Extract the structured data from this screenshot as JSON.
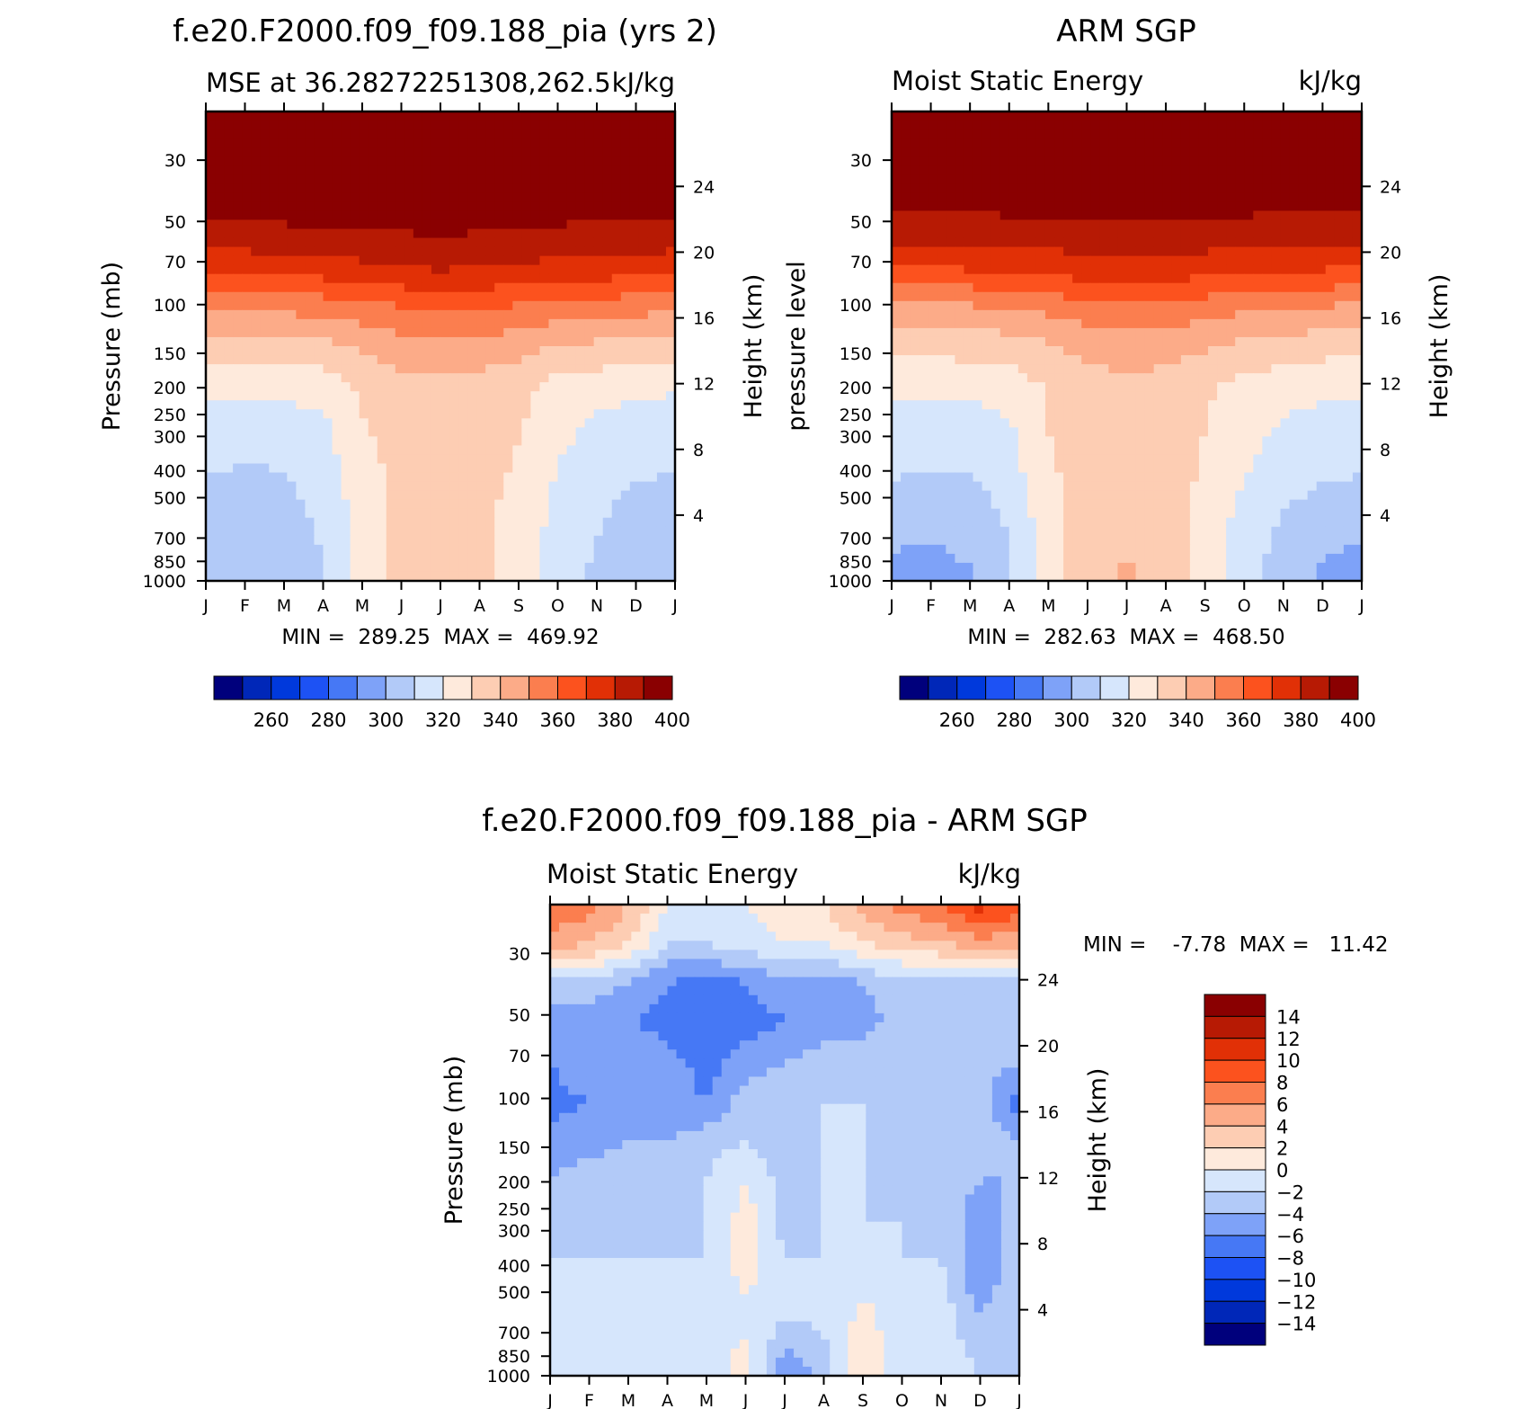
{
  "chart_data": [
    {
      "type": "heatmap",
      "title": "f.e20.F2000.f09_f09.188_pia (yrs 2)",
      "left_label": "MSE at 36.28272251308,262.5",
      "right_label": "kJ/kg",
      "ylabel": "Pressure (mb)",
      "y2label": "Height (km)",
      "x_ticks": [
        "J",
        "F",
        "M",
        "A",
        "M",
        "J",
        "J",
        "A",
        "S",
        "O",
        "N",
        "D",
        "J"
      ],
      "y_ticks": [
        "30",
        "50",
        "70",
        "100",
        "150",
        "200",
        "250",
        "300",
        "400",
        "500",
        "700",
        "850",
        "1000"
      ],
      "y_tick_values": [
        30,
        50,
        70,
        100,
        150,
        200,
        250,
        300,
        400,
        500,
        700,
        850,
        1000
      ],
      "y2_ticks": [
        "24",
        "20",
        "16",
        "12",
        "8",
        "4"
      ],
      "y2_tick_values": [
        24,
        20,
        16,
        12,
        8,
        4
      ],
      "ylim": [
        20,
        1000
      ],
      "min_max_text": "MIN =  289.25  MAX =  469.92",
      "z_min": 289.25,
      "z_max": 469.92,
      "colorbar_labels": [
        "260",
        "280",
        "300",
        "320",
        "340",
        "360",
        "380",
        "400"
      ],
      "grid": [
        [
          410,
          410,
          410,
          410,
          410,
          410,
          410,
          410,
          410,
          410,
          410,
          410,
          410
        ],
        [
          402,
          402,
          402,
          403,
          404,
          406,
          408,
          407,
          406,
          404,
          403,
          402,
          401
        ],
        [
          396,
          396,
          397,
          397,
          398,
          399,
          400,
          400,
          399,
          398,
          397,
          397,
          396
        ],
        [
          388,
          388,
          389,
          390,
          390,
          391,
          392,
          391,
          390,
          389,
          389,
          388,
          388
        ],
        [
          374,
          374,
          375,
          376,
          378,
          380,
          381,
          380,
          379,
          377,
          376,
          375,
          374
        ],
        [
          352,
          352,
          353,
          354,
          357,
          360,
          362,
          361,
          359,
          356,
          355,
          354,
          352
        ],
        [
          335,
          335,
          336,
          337,
          342,
          346,
          348,
          346,
          344,
          339,
          338,
          336,
          335
        ],
        [
          322,
          323,
          323,
          325,
          332,
          336,
          338,
          336,
          333,
          327,
          325,
          323,
          322
        ],
        [
          315,
          314,
          315,
          318,
          329,
          335,
          337,
          335,
          331,
          323,
          318,
          315,
          314
        ],
        [
          312,
          310,
          311,
          316,
          326,
          334,
          336,
          334,
          329,
          320,
          315,
          312,
          311
        ],
        [
          306,
          305,
          307,
          313,
          325,
          333,
          335,
          333,
          327,
          318,
          312,
          308,
          306
        ],
        [
          303,
          302,
          304,
          311,
          325,
          333,
          336,
          333,
          326,
          316,
          310,
          304,
          303
        ],
        [
          300,
          300,
          302,
          310,
          324,
          333,
          335,
          332,
          325,
          315,
          308,
          302,
          300
        ]
      ]
    },
    {
      "type": "heatmap",
      "title": "ARM SGP",
      "left_label": "Moist Static Energy",
      "right_label": "kJ/kg",
      "ylabel": "pressure level",
      "y2label": "Height (km)",
      "x_ticks": [
        "J",
        "F",
        "M",
        "A",
        "M",
        "J",
        "J",
        "A",
        "S",
        "O",
        "N",
        "D",
        "J"
      ],
      "y_ticks": [
        "30",
        "50",
        "70",
        "100",
        "150",
        "200",
        "250",
        "300",
        "400",
        "500",
        "700",
        "850",
        "1000"
      ],
      "y_tick_values": [
        30,
        50,
        70,
        100,
        150,
        200,
        250,
        300,
        400,
        500,
        700,
        850,
        1000
      ],
      "y2_ticks": [
        "24",
        "20",
        "16",
        "12",
        "8",
        "4"
      ],
      "y2_tick_values": [
        24,
        20,
        16,
        12,
        8,
        4
      ],
      "ylim": [
        20,
        1000
      ],
      "min_max_text": "MIN =  282.63  MAX =  468.50",
      "z_min": 282.63,
      "z_max": 468.5,
      "colorbar_labels": [
        "260",
        "280",
        "300",
        "320",
        "340",
        "360",
        "380",
        "400"
      ],
      "grid": [
        [
          410,
          410,
          410,
          410,
          410,
          410,
          410,
          410,
          410,
          410,
          410,
          410,
          410
        ],
        [
          405,
          405,
          405,
          406,
          407,
          408,
          409,
          408,
          407,
          406,
          405,
          405,
          404
        ],
        [
          395,
          395,
          396,
          396,
          396,
          397,
          398,
          397,
          396,
          396,
          396,
          395,
          395
        ],
        [
          386,
          386,
          386,
          387,
          387,
          388,
          389,
          388,
          387,
          387,
          386,
          386,
          386
        ],
        [
          370,
          370,
          371,
          372,
          374,
          376,
          377,
          376,
          375,
          373,
          372,
          371,
          370
        ],
        [
          348,
          348,
          349,
          350,
          353,
          356,
          358,
          357,
          355,
          352,
          351,
          350,
          348
        ],
        [
          333,
          333,
          334,
          335,
          339,
          343,
          345,
          344,
          341,
          337,
          335,
          334,
          333
        ],
        [
          323,
          323,
          323,
          325,
          331,
          336,
          338,
          336,
          332,
          327,
          325,
          323,
          322
        ],
        [
          317,
          315,
          316,
          319,
          330,
          336,
          338,
          336,
          330,
          324,
          319,
          316,
          315
        ],
        [
          313,
          311,
          312,
          317,
          329,
          335,
          337,
          335,
          329,
          321,
          316,
          313,
          312
        ],
        [
          305,
          304,
          306,
          313,
          326,
          334,
          336,
          334,
          327,
          318,
          311,
          307,
          305
        ],
        [
          301,
          300,
          302,
          310,
          326,
          335,
          339,
          335,
          326,
          315,
          307,
          302,
          300
        ],
        [
          297,
          296,
          299,
          309,
          326,
          336,
          342,
          336,
          326,
          314,
          305,
          298,
          296
        ]
      ]
    },
    {
      "type": "heatmap",
      "title": "f.e20.F2000.f09_f09.188_pia - ARM SGP",
      "left_label": "Moist Static Energy",
      "right_label": "kJ/kg",
      "ylabel": "Pressure (mb)",
      "y2label": "Height (km)",
      "x_ticks": [
        "J",
        "F",
        "M",
        "A",
        "M",
        "J",
        "J",
        "A",
        "S",
        "O",
        "N",
        "D",
        "J"
      ],
      "y_ticks": [
        "30",
        "50",
        "70",
        "100",
        "150",
        "200",
        "250",
        "300",
        "400",
        "500",
        "700",
        "850",
        "1000"
      ],
      "y_tick_values": [
        30,
        50,
        70,
        100,
        150,
        200,
        250,
        300,
        400,
        500,
        700,
        850,
        1000
      ],
      "y2_ticks": [
        "24",
        "20",
        "16",
        "12",
        "8",
        "4"
      ],
      "y2_tick_values": [
        24,
        20,
        16,
        12,
        8,
        4
      ],
      "ylim": [
        20,
        1000
      ],
      "min_max_text": "MIN =    -7.78  MAX =   11.42",
      "z_min": -7.78,
      "z_max": 11.42,
      "colorbar_labels": [
        "14",
        "12",
        "10",
        "8",
        "6",
        "4",
        "2",
        "0",
        "-2",
        "-4",
        "-6",
        "-8",
        "-10",
        "-12",
        "-14"
      ],
      "grid": [
        [
          8,
          7,
          4,
          0,
          -1,
          0,
          1,
          2,
          5,
          7,
          8,
          11,
          9
        ],
        [
          5,
          4,
          2,
          -2,
          -2,
          -1,
          0,
          0,
          2,
          3,
          4,
          5,
          5
        ],
        [
          -3,
          -3,
          -4,
          -6,
          -7,
          -6,
          -5,
          -5,
          -4,
          -3,
          -3,
          -3,
          -4
        ],
        [
          -5,
          -5,
          -6,
          -7,
          -8,
          -7,
          -6,
          -5,
          -5,
          -3,
          -4,
          -4,
          -4
        ],
        [
          -6,
          -4,
          -4,
          -5,
          -7,
          -5,
          -4,
          -3,
          -3,
          -2,
          -2,
          -3,
          -4
        ],
        [
          -7,
          -6,
          -5,
          -5,
          -6,
          -3,
          -2,
          -2,
          -2,
          -3,
          -2,
          -3,
          -7
        ],
        [
          -5,
          -5,
          -4,
          -4,
          -3,
          -2,
          -3,
          -2,
          -2,
          -3,
          -2,
          -3,
          -4
        ],
        [
          -4,
          -3,
          -3,
          -3,
          -2,
          0,
          -3,
          -2,
          -2,
          -3,
          -3,
          -4,
          -4
        ],
        [
          -3,
          -2,
          -3,
          -3,
          -2,
          1,
          -3,
          -2,
          -2,
          -2,
          -3,
          -5,
          -3
        ],
        [
          -2,
          -2,
          -2,
          -2,
          -2,
          1,
          -2,
          -2,
          -1,
          -2,
          -2,
          -6,
          -3
        ],
        [
          -1,
          -1,
          -1,
          0,
          -1,
          0,
          -1,
          -1,
          0,
          -1,
          -1,
          -5,
          -2
        ],
        [
          -1,
          -1,
          -1,
          0,
          -1,
          0,
          -3,
          -2,
          1,
          -1,
          -1,
          -3,
          -2
        ],
        [
          -1,
          -1,
          0,
          0,
          -1,
          1,
          -6,
          -3,
          2,
          -1,
          0,
          -2,
          -2
        ]
      ]
    }
  ],
  "palette": {
    "abs_colors": [
      "#00007c",
      "#0027b8",
      "#0039dc",
      "#1d52f4",
      "#4678f5",
      "#7ea2f8",
      "#b2caf8",
      "#d6e6fc",
      "#feeadc",
      "#fdcdb3",
      "#fcab88",
      "#fb7e4f",
      "#fc521e",
      "#e13006",
      "#b71a04",
      "#8a0001"
    ],
    "diff_colors": [
      "#00007c",
      "#0027b8",
      "#0039dc",
      "#1d52f4",
      "#4678f5",
      "#7ea2f8",
      "#b2caf8",
      "#d6e6fc",
      "#feeadc",
      "#fdcdb3",
      "#fcab88",
      "#fb7e4f",
      "#fc521e",
      "#e13006",
      "#b71a04",
      "#8a0001"
    ]
  }
}
